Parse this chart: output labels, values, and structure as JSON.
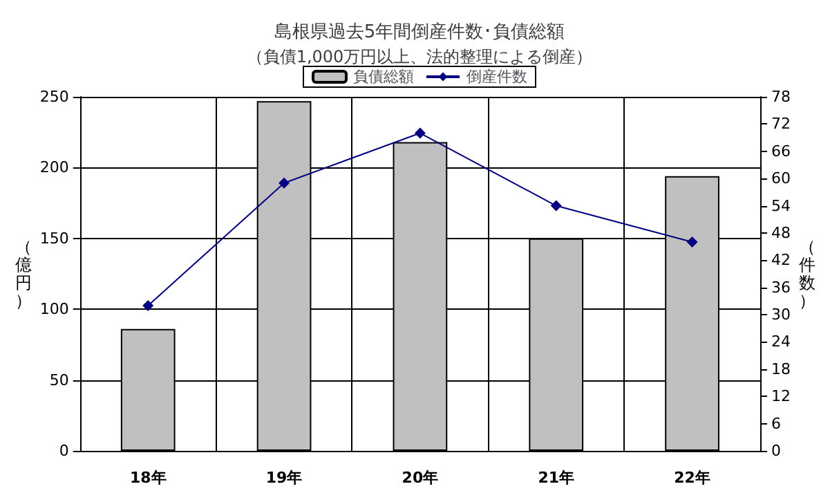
{
  "chart_data": {
    "type": "bar",
    "title": "島根県過去5年間倒産件数･負債総額",
    "subtitle": "（負債1,000万円以上、法的整理による倒産）",
    "ylabel": "（億円）",
    "y2label": "（件数）",
    "categories": [
      "18年",
      "19年",
      "20年",
      "21年",
      "22年"
    ],
    "series": [
      {
        "name": "負債総額",
        "color": "#c0c0c0",
        "values": [
          86,
          247,
          218,
          150,
          194
        ]
      },
      {
        "name": "倒産件数",
        "type": "line",
        "axis": "y2",
        "color": "#000080",
        "marker": "diamond",
        "values": [
          32,
          59,
          70,
          54,
          46
        ]
      }
    ],
    "ylim": [
      0,
      250
    ],
    "yticks": [
      0,
      50,
      100,
      150,
      200,
      250
    ],
    "y2lim": [
      0,
      78
    ],
    "y2ticks": [
      0,
      6,
      12,
      18,
      24,
      30,
      36,
      42,
      48,
      54,
      60,
      66,
      72,
      78
    ],
    "grid": true,
    "legend": "top"
  }
}
